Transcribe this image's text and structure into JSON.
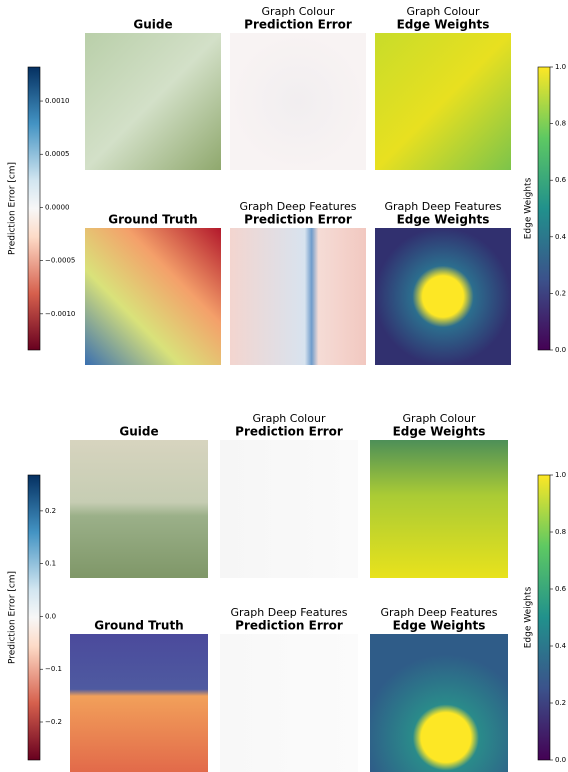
{
  "panels": [
    {
      "left_colorbar": {
        "label": "Prediction Error [cm]",
        "lim": [
          -0.00134,
          0.00132
        ],
        "ticks": [
          {
            "value": 0.001,
            "label": "0.0010"
          },
          {
            "value": 0.0005,
            "label": "0.0005"
          },
          {
            "value": 0,
            "label": "0.0000"
          },
          {
            "value": -0.0005,
            "label": "−0.0005"
          },
          {
            "value": -0.001,
            "label": "−0.0010"
          }
        ]
      },
      "right_colorbar": {
        "label": "Edge Weights",
        "lim": [
          0,
          1
        ],
        "ticks": [
          {
            "value": 0,
            "label": "0.0"
          },
          {
            "value": 0.2,
            "label": "0.2"
          },
          {
            "value": 0.4,
            "label": "0.4"
          },
          {
            "value": 0.6,
            "label": "0.6"
          },
          {
            "value": 0.8,
            "label": "0.8"
          },
          {
            "value": 1,
            "label": "1.0"
          }
        ]
      },
      "tiles": [
        {
          "title": "Guide"
        },
        {
          "subtitle": "Graph Colour",
          "title": "Prediction Error"
        },
        {
          "subtitle": "Graph Colour",
          "title": "Edge Weights"
        },
        {
          "title": "Ground Truth"
        },
        {
          "subtitle": "Graph Deep Features",
          "title": "Prediction Error"
        },
        {
          "subtitle": "Graph Deep Features",
          "title": "Edge Weights"
        }
      ]
    },
    {
      "left_colorbar": {
        "label": "Prediction Error [cm]",
        "lim": [
          -0.272,
          0.268
        ],
        "ticks": [
          0.2,
          0.1,
          {
            "value": 0,
            "label": "0.0"
          },
          {
            "value": -0.1,
            "label": "−0.1"
          },
          {
            "value": -0.2,
            "label": "−0.2"
          }
        ]
      },
      "right_colorbar": {
        "label": "Edge Weights",
        "lim": [
          0,
          1
        ],
        "ticks": [
          {
            "value": 0,
            "label": "0.0"
          },
          {
            "value": 0.2,
            "label": "0.2"
          },
          {
            "value": 0.4,
            "label": "0.4"
          },
          {
            "value": 0.6,
            "label": "0.6"
          },
          {
            "value": 0.8,
            "label": "0.8"
          },
          {
            "value": 1,
            "label": "1.0"
          }
        ]
      },
      "tiles": [
        {
          "title": "Guide"
        },
        {
          "subtitle": "Graph Colour",
          "title": "Prediction Error"
        },
        {
          "subtitle": "Graph Colour",
          "title": "Edge Weights"
        },
        {
          "title": "Ground Truth"
        },
        {
          "subtitle": "Graph Deep Features",
          "title": "Prediction Error"
        },
        {
          "subtitle": "Graph Deep Features",
          "title": "Edge Weights"
        }
      ]
    }
  ]
}
